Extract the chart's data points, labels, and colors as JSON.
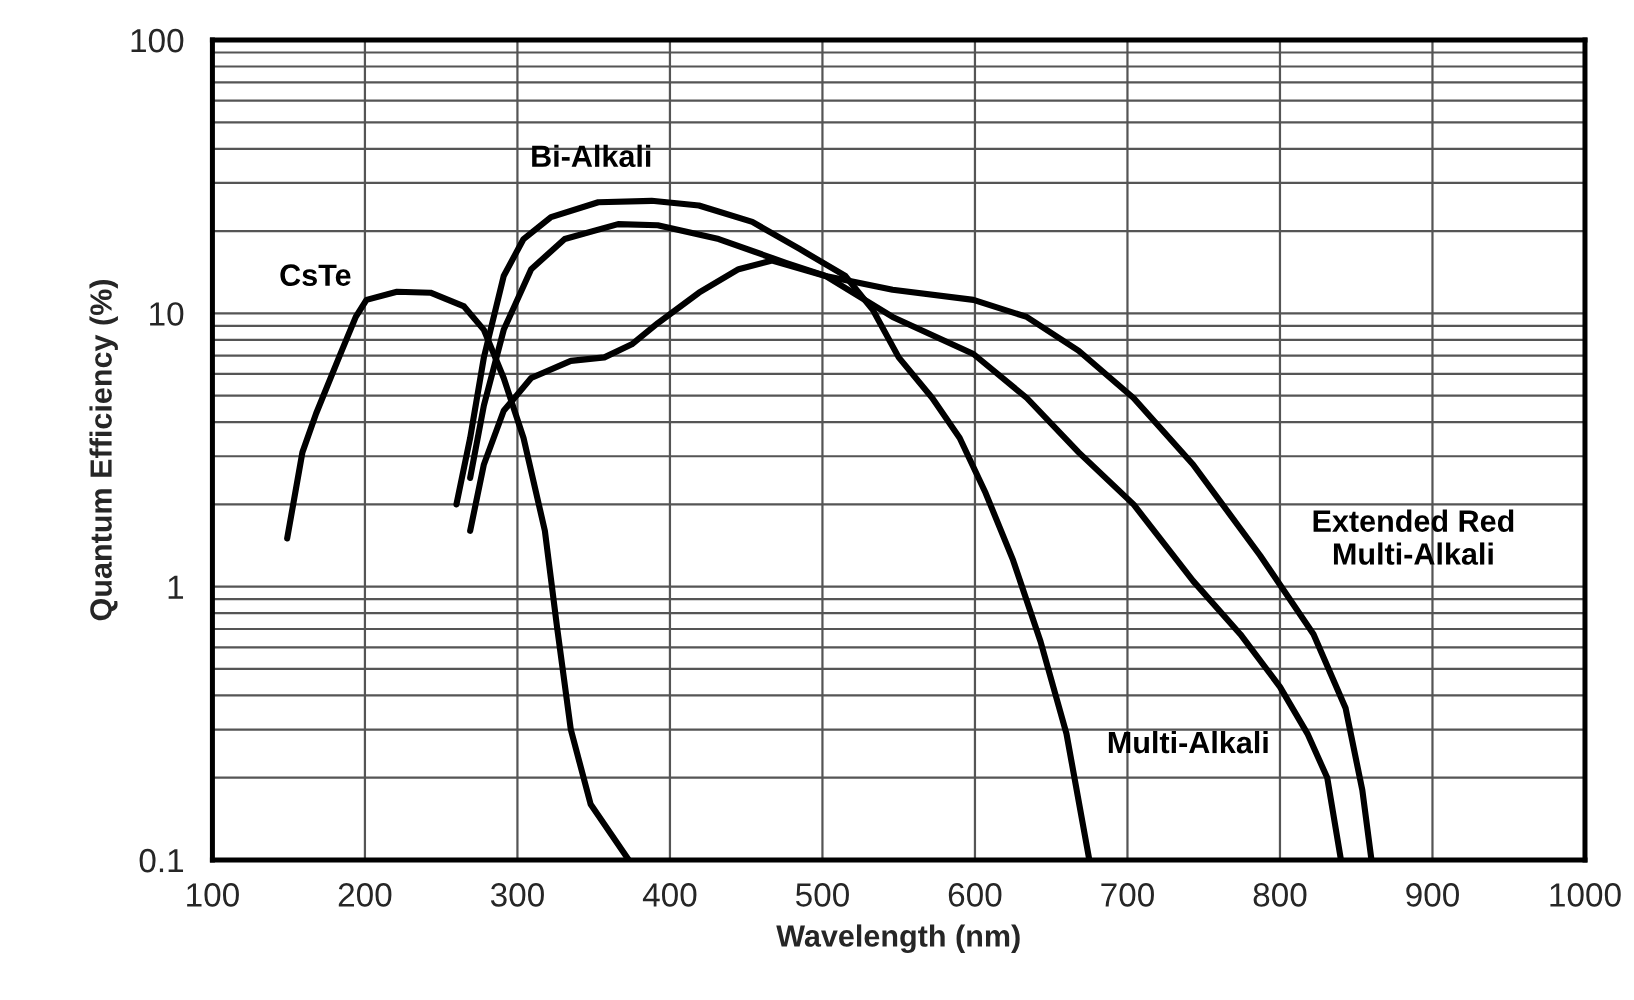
{
  "chart_data": {
    "type": "line",
    "xlabel": "Wavelength (nm)",
    "ylabel": "Quantum Efficiency (%)",
    "log": "y",
    "grid": true,
    "legend": false,
    "marker": "none",
    "line_style": "solid",
    "xlim": [
      100,
      1000
    ],
    "xticks": [
      100,
      200,
      300,
      400,
      500,
      600,
      700,
      800,
      900,
      1000
    ],
    "ylim": [
      0.1,
      100
    ],
    "yticks": [
      0.1,
      1,
      10,
      100
    ],
    "series": [
      {
        "name": "CsTe",
        "color": "#000000",
        "x": [
          149,
          159,
          168,
          183,
          194,
          201,
          221,
          243,
          265,
          278,
          291,
          304,
          318,
          326,
          335,
          348,
          373
        ],
        "values": [
          1.5,
          3.1,
          4.3,
          6.9,
          9.7,
          11.2,
          12.0,
          11.9,
          10.6,
          8.7,
          5.8,
          3.5,
          1.6,
          0.71,
          0.3,
          0.16,
          0.1
        ]
      },
      {
        "name": "Bi-Alkali",
        "color": "#000000",
        "x": [
          260,
          269,
          278,
          291,
          304,
          322,
          353,
          388,
          419,
          454,
          485,
          515,
          533,
          550,
          572,
          590,
          607,
          625,
          643,
          660,
          675
        ],
        "values": [
          2.0,
          3.5,
          6.9,
          13.7,
          18.7,
          22.5,
          25.5,
          25.8,
          24.8,
          21.6,
          17.2,
          13.7,
          10.3,
          6.9,
          4.9,
          3.5,
          2.2,
          1.25,
          0.63,
          0.29,
          0.1
        ]
      },
      {
        "name": "Multi-Alkali",
        "color": "#000000",
        "x": [
          269,
          278,
          291,
          309,
          331,
          366,
          392,
          432,
          476,
          502,
          546,
          599,
          634,
          668,
          704,
          743,
          774,
          800,
          818,
          831,
          840
        ],
        "values": [
          2.5,
          4.6,
          8.7,
          14.5,
          18.7,
          21.2,
          21.0,
          18.7,
          15.3,
          13.7,
          9.7,
          7.1,
          4.9,
          3.1,
          2.0,
          1.05,
          0.67,
          0.43,
          0.29,
          0.2,
          0.1
        ]
      },
      {
        "name": "Extended Red\nMulti-Alkali",
        "color": "#000000",
        "x": [
          269,
          278,
          291,
          309,
          335,
          357,
          375,
          392,
          419,
          445,
          467,
          502,
          546,
          599,
          634,
          668,
          704,
          743,
          787,
          822,
          843,
          854,
          860
        ],
        "values": [
          1.6,
          2.8,
          4.4,
          5.8,
          6.7,
          6.9,
          7.7,
          9.2,
          11.9,
          14.5,
          15.6,
          13.7,
          12.2,
          11.2,
          9.7,
          7.3,
          4.9,
          2.8,
          1.3,
          0.67,
          0.36,
          0.18,
          0.1
        ]
      }
    ]
  }
}
